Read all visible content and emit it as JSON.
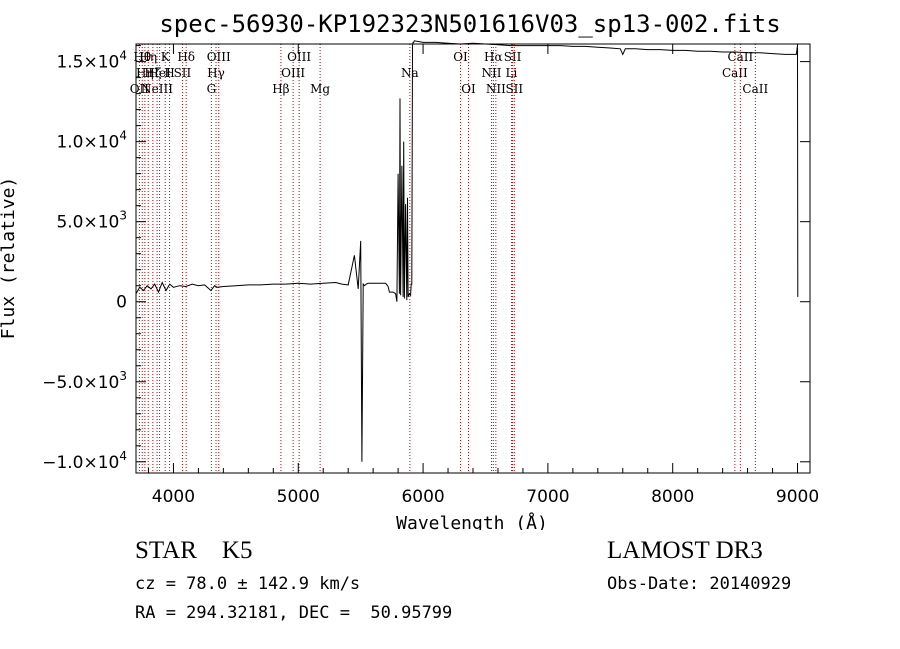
{
  "chart_data": {
    "type": "line",
    "title": "spec-56930-KP192323N501616V03_sp13-002.fits",
    "xlabel": "Wavelength (Å)",
    "ylabel": "Flux (relative)",
    "xlim": [
      3700,
      9100
    ],
    "ylim": [
      -10700,
      16100
    ],
    "x_ticks": [
      {
        "value": 4000,
        "label": "4000"
      },
      {
        "value": 5000,
        "label": "5000"
      },
      {
        "value": 6000,
        "label": "6000"
      },
      {
        "value": 7000,
        "label": "7000"
      },
      {
        "value": 8000,
        "label": "8000"
      },
      {
        "value": 9000,
        "label": "9000"
      }
    ],
    "y_ticks": [
      {
        "value": 15000,
        "mantissa": "1.5×10",
        "exp": "4"
      },
      {
        "value": 10000,
        "mantissa": "1.0×10",
        "exp": "4"
      },
      {
        "value": 5000,
        "mantissa": "5.0×10",
        "exp": "3"
      },
      {
        "value": 0,
        "mantissa": "0",
        "exp": ""
      },
      {
        "value": -5000,
        "mantissa": "−5.0×10",
        "exp": "3"
      },
      {
        "value": -10000,
        "mantissa": "−1.0×10",
        "exp": "4"
      }
    ],
    "grid": false,
    "line_color": "#000000",
    "marker_color": "#cc0000",
    "series": [
      {
        "x": [
          3700,
          3730,
          3760,
          3790,
          3820,
          3850,
          3880,
          3910,
          3940,
          3970,
          4000,
          4050,
          4100,
          4150,
          4200,
          4250,
          4300,
          4330,
          4350,
          4400,
          4500,
          4600,
          4700,
          4800,
          4900,
          5000,
          5100,
          5200,
          5300,
          5350,
          5400,
          5450,
          5480,
          5500,
          5510,
          5520,
          5530,
          5545,
          5560,
          5600,
          5650,
          5700,
          5720,
          5730,
          5760,
          5780,
          5790,
          5800,
          5810,
          5815,
          5820,
          5830,
          5840,
          5845,
          5850,
          5860,
          5870,
          5875,
          5880,
          5890,
          5900,
          5905,
          5910,
          5915,
          5920,
          5925,
          5930,
          6000,
          6100,
          6200,
          6300,
          6400,
          6500,
          6600,
          6700,
          6800,
          6900,
          7000,
          7100,
          7200,
          7300,
          7400,
          7500,
          7580,
          7600,
          7620,
          7700,
          7800,
          7900,
          8000,
          8100,
          8200,
          8300,
          8400,
          8500,
          8600,
          8700,
          8800,
          8900,
          8990,
          9000,
          9002
        ],
        "y": [
          500,
          900,
          700,
          1000,
          800,
          1100,
          600,
          1200,
          700,
          1100,
          900,
          1000,
          950,
          1100,
          1000,
          1050,
          700,
          1000,
          900,
          950,
          1000,
          1050,
          1050,
          1100,
          1100,
          1150,
          1100,
          1150,
          1200,
          1100,
          1050,
          2900,
          800,
          3800,
          -10000,
          1100,
          1000,
          1100,
          1150,
          1150,
          1150,
          1150,
          950,
          600,
          600,
          500,
          0,
          8000,
          500,
          12700,
          400,
          8500,
          300,
          10000,
          200,
          6100,
          100,
          6500,
          300,
          500,
          400,
          1100,
          1100,
          16000,
          16200,
          16200,
          16300,
          16200,
          16200,
          16150,
          16100,
          16150,
          16100,
          16050,
          16000,
          16000,
          16000,
          16000,
          16000,
          15950,
          15950,
          15900,
          15850,
          15800,
          15450,
          15800,
          15800,
          15750,
          15750,
          15700,
          15700,
          15650,
          15650,
          15600,
          15600,
          15550,
          15550,
          15500,
          15450,
          15450,
          16000,
          300
        ]
      }
    ],
    "lines": [
      {
        "wl": 3727,
        "row": 2,
        "label": "OII"
      },
      {
        "wl": 3750,
        "row": 0,
        "label": "Hθ"
      },
      {
        "wl": 3771,
        "row": 1,
        "label": "Hη"
      },
      {
        "wl": 3798,
        "row": 0,
        "label": "Hη"
      },
      {
        "wl": 3835,
        "row": 1,
        "label": "Hζ"
      },
      {
        "wl": 3869,
        "row": 2,
        "label": "NeIII"
      },
      {
        "wl": 3889,
        "row": 1,
        "label": "HeI"
      },
      {
        "wl": 3934,
        "row": 0,
        "label": "K"
      },
      {
        "wl": 3969,
        "row": 1,
        "label": "H"
      },
      {
        "wl": 4072,
        "row": 1,
        "label": "SII"
      },
      {
        "wl": 4102,
        "row": 0,
        "label": "Hδ"
      },
      {
        "wl": 4304,
        "row": 2,
        "label": "G"
      },
      {
        "wl": 4341,
        "row": 1,
        "label": "Hγ"
      },
      {
        "wl": 4363,
        "row": 0,
        "label": "OIII"
      },
      {
        "wl": 4861,
        "row": 2,
        "label": "Hβ"
      },
      {
        "wl": 4959,
        "row": 1,
        "label": "OIII"
      },
      {
        "wl": 5007,
        "row": 0,
        "label": "OIII"
      },
      {
        "wl": 5175,
        "row": 2,
        "label": "Mg"
      },
      {
        "wl": 5894,
        "row": 1,
        "label": "Na"
      },
      {
        "wl": 6300,
        "row": 0,
        "label": "OI"
      },
      {
        "wl": 6364,
        "row": 2,
        "label": "OI"
      },
      {
        "wl": 6548,
        "row": 1,
        "label": "NII"
      },
      {
        "wl": 6563,
        "row": 0,
        "label": "Hα"
      },
      {
        "wl": 6583,
        "row": 2,
        "label": "NII"
      },
      {
        "wl": 6708,
        "row": 1,
        "label": "Li"
      },
      {
        "wl": 6717,
        "row": 0,
        "label": "SII"
      },
      {
        "wl": 6731,
        "row": 2,
        "label": "SII"
      },
      {
        "wl": 8498,
        "row": 1,
        "label": "CaII"
      },
      {
        "wl": 8542,
        "row": 0,
        "label": "CaII"
      },
      {
        "wl": 8662,
        "row": 2,
        "label": "CaII"
      }
    ]
  },
  "footer": {
    "object_class": "STAR    K5",
    "survey": "LAMOST DR3",
    "redshift": "cz = 78.0 ± 142.9 km/s",
    "obs_date": "Obs-Date: 20140929",
    "coords": "RA = 294.32181, DEC =  50.95799"
  }
}
